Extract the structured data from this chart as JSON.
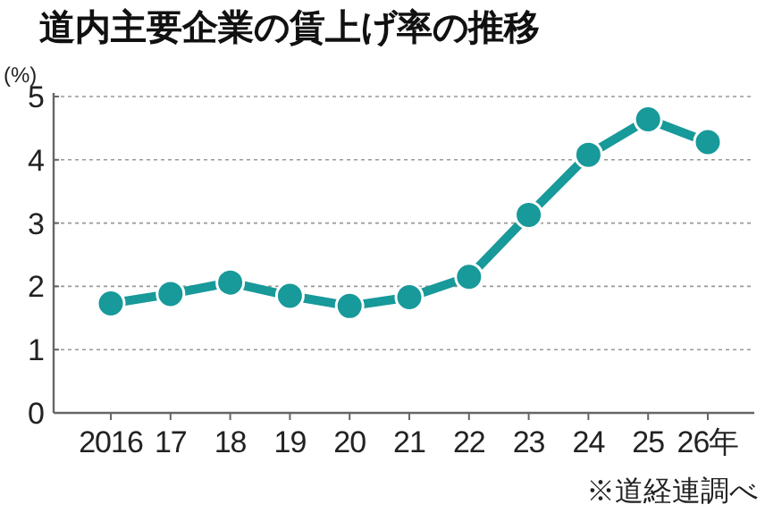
{
  "chart_data": {
    "type": "line",
    "title": "道内主要企業の賃上げ率の推移",
    "ylabel": "(%)",
    "categories": [
      "2016",
      "17",
      "18",
      "19",
      "20",
      "21",
      "22",
      "23",
      "24",
      "25",
      "26年"
    ],
    "series": [
      {
        "color": "#18999a",
        "values": [
          1.73,
          1.88,
          2.06,
          1.85,
          1.69,
          1.83,
          2.15,
          3.13,
          4.08,
          4.64,
          4.28
        ]
      }
    ],
    "ylim": [
      0,
      5
    ],
    "yticks": [
      0,
      1,
      2,
      3,
      4,
      5
    ],
    "grid": "y",
    "marker": "circle",
    "line_style": "solid",
    "annotations": [
      "※道経連調べ"
    ]
  }
}
